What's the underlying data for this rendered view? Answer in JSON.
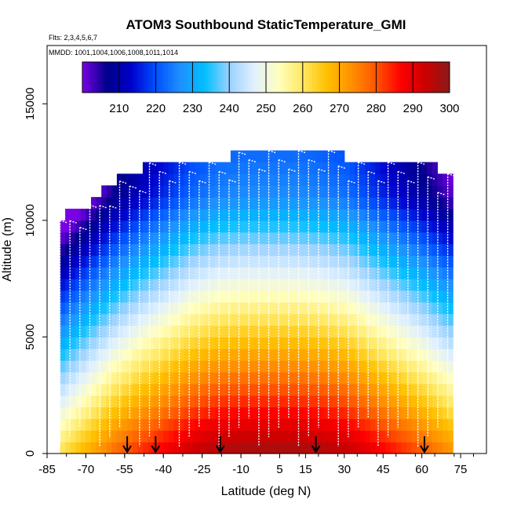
{
  "chart_data": {
    "type": "heatmap",
    "title": "ATOM3 Southbound StaticTemperature_GMI",
    "subtitle_flights": "Flts: 2,3,4,5,6,7",
    "subtitle_dates": "MMDD: 1001,1004,1006,1008,1011,1014",
    "xlabel": "Latitude (deg N)",
    "ylabel": "Altitude (m)",
    "xlim": [
      -85,
      85
    ],
    "ylim": [
      0,
      17500
    ],
    "x_ticks": [
      -85,
      -70,
      -55,
      -40,
      -25,
      -10,
      5,
      15,
      30,
      45,
      60,
      75
    ],
    "y_ticks": [
      0,
      5000,
      10000,
      15000
    ],
    "colorbar": {
      "range": [
        200,
        300
      ],
      "ticks": [
        210,
        220,
        230,
        240,
        250,
        260,
        270,
        280,
        290,
        300
      ],
      "colors": [
        "#7a00e6",
        "#00008a",
        "#0000cc",
        "#0050ff",
        "#1e90ff",
        "#00bfff",
        "#9ad2ff",
        "#e0f0ff",
        "#ffffc0",
        "#ffe860",
        "#ffc000",
        "#ff9000",
        "#ff5500",
        "#ff0000",
        "#cc0000",
        "#8b1a1a"
      ]
    },
    "surface_temperature_profile": {
      "latitude": [
        -80,
        -75,
        -70,
        -60,
        -50,
        -40,
        -30,
        -20,
        -10,
        0,
        10,
        20,
        30,
        40,
        50,
        60,
        70
      ],
      "temperature_at_surface": [
        262,
        266,
        270,
        278,
        284,
        289,
        294,
        297,
        298,
        298,
        298,
        297,
        295,
        290,
        285,
        280,
        274
      ]
    },
    "curtain_top_altitude": {
      "latitude": [
        -80,
        -75,
        -70,
        -65,
        -60,
        -55,
        -50,
        -45,
        -40,
        -35,
        -30,
        -25,
        -20,
        -15,
        -10,
        -5,
        0,
        5,
        10,
        15,
        20,
        25,
        30,
        35,
        40,
        45,
        50,
        55,
        60,
        65,
        70
      ],
      "altitude": [
        10000,
        10500,
        10500,
        11000,
        11500,
        11800,
        12000,
        12500,
        12500,
        12500,
        12500,
        12500,
        12500,
        12500,
        13000,
        13000,
        13000,
        13000,
        13000,
        13000,
        13000,
        13000,
        12500,
        12500,
        12500,
        12500,
        12500,
        12500,
        12500,
        12000,
        12000
      ]
    },
    "arrow_markers_latitude": [
      -54,
      -43,
      -18,
      19,
      61
    ],
    "flight_track_color": "#ffffff"
  }
}
